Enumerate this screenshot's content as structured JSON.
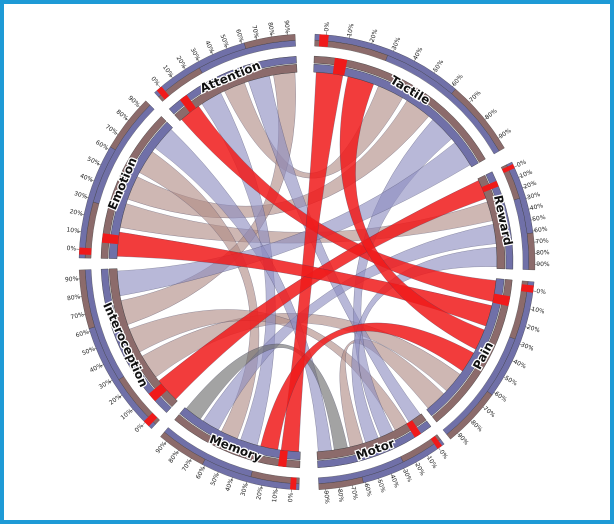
{
  "colors": {
    "frame": "#1e9ad6",
    "blue": "#7070a8",
    "blue_fill": "#8c8cc0",
    "brown": "#8c6b6b",
    "brown_fill": "#b08a84",
    "red": "#f01a1a",
    "gray": "#6a6a6a"
  },
  "diagram": {
    "segments": [
      {
        "id": "tactile",
        "label": "Tactile",
        "start": 2,
        "end": 60
      },
      {
        "id": "reward",
        "label": "Reward",
        "start": 64,
        "end": 92
      },
      {
        "id": "pain",
        "label": "Pain",
        "start": 95,
        "end": 141
      },
      {
        "id": "motor",
        "label": "Motor",
        "start": 143,
        "end": 177
      },
      {
        "id": "memory",
        "label": "Memory",
        "start": 182,
        "end": 220
      },
      {
        "id": "interoception",
        "label": "Interoception",
        "start": 223,
        "end": 268
      },
      {
        "id": "emotion",
        "label": "Emotion",
        "start": 271,
        "end": 315
      },
      {
        "id": "attention",
        "label": "Attention",
        "start": 318,
        "end": 357
      }
    ],
    "percent_ticks": [
      "0%",
      "10%",
      "20%",
      "30%",
      "40%",
      "50%",
      "60%",
      "70%",
      "80%",
      "90%"
    ],
    "chords": [
      {
        "from": "attention",
        "to": "pain",
        "color": "red"
      },
      {
        "from": "tactile",
        "to": "memory",
        "color": "red"
      },
      {
        "from": "reward",
        "to": "interoception",
        "color": "red"
      },
      {
        "from": "emotion",
        "to": "pain",
        "color": "red"
      },
      {
        "from": "tactile",
        "to": "pain",
        "color": "red"
      },
      {
        "from": "memory",
        "to": "pain",
        "color": "red"
      },
      {
        "from": "attention",
        "to": "memory",
        "color": "blue"
      },
      {
        "from": "attention",
        "to": "tactile",
        "color": "brown"
      },
      {
        "from": "attention",
        "to": "motor",
        "color": "blue"
      },
      {
        "from": "emotion",
        "to": "reward",
        "color": "brown"
      },
      {
        "from": "emotion",
        "to": "tactile",
        "color": "brown"
      },
      {
        "from": "emotion",
        "to": "memory",
        "color": "brown"
      },
      {
        "from": "interoception",
        "to": "pain",
        "color": "brown"
      },
      {
        "from": "interoception",
        "to": "motor",
        "color": "brown"
      },
      {
        "from": "tactile",
        "to": "motor",
        "color": "blue"
      },
      {
        "from": "reward",
        "to": "memory",
        "color": "blue"
      },
      {
        "from": "reward",
        "to": "motor",
        "color": "blue"
      },
      {
        "from": "pain",
        "to": "motor",
        "color": "brown"
      },
      {
        "from": "memory",
        "to": "motor",
        "color": "gray"
      },
      {
        "from": "attention",
        "to": "interoception",
        "color": "brown"
      },
      {
        "from": "emotion",
        "to": "motor",
        "color": "blue"
      },
      {
        "from": "tactile",
        "to": "interoception",
        "color": "blue"
      }
    ]
  }
}
